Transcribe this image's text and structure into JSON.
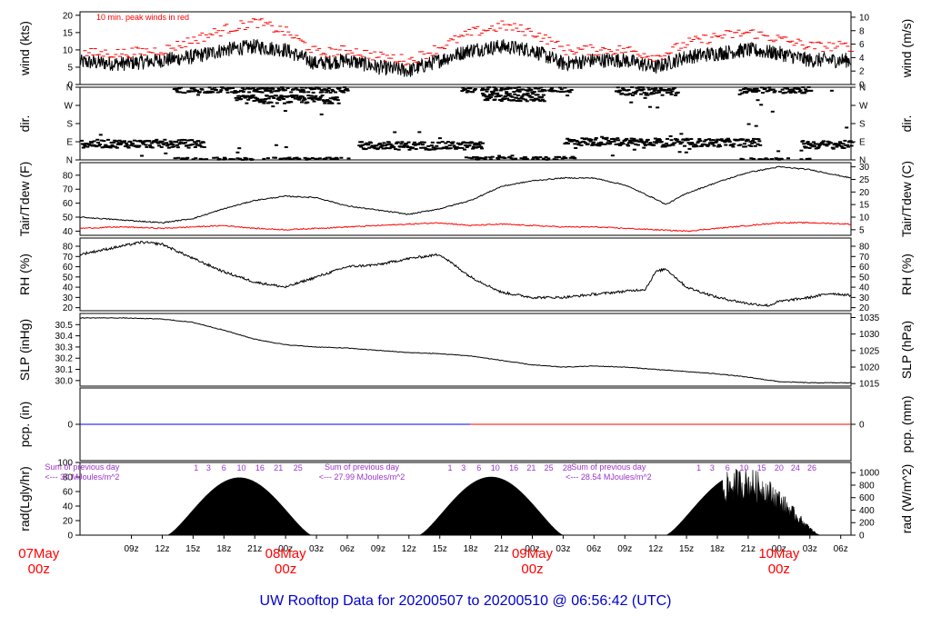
{
  "chart_data": {
    "type": "line",
    "title": "UW Rooftop Data for 20200507  to  20200510 @ 06:56:42  (UTC)",
    "x_axis": {
      "unit": "UTC hour",
      "range_hours": [
        4,
        79
      ],
      "tick_labels": [
        "09z",
        "12z",
        "15z",
        "18z",
        "21z",
        "00z",
        "03z",
        "06z",
        "09z",
        "12z",
        "15z",
        "18z",
        "21z",
        "00z",
        "03z",
        "06z",
        "09z",
        "12z",
        "15z",
        "18z",
        "21z",
        "00z",
        "03z",
        "06z"
      ],
      "tick_hours": [
        9,
        12,
        15,
        18,
        21,
        24,
        27,
        30,
        33,
        36,
        39,
        42,
        45,
        48,
        51,
        54,
        57,
        60,
        63,
        66,
        69,
        72,
        75,
        78
      ],
      "date_labels": [
        {
          "hour": 0,
          "day": "07May",
          "zone": "00z"
        },
        {
          "hour": 24,
          "day": "08May",
          "zone": "00z"
        },
        {
          "hour": 48,
          "day": "09May",
          "zone": "00z"
        },
        {
          "hour": 72,
          "day": "10May",
          "zone": "00z"
        }
      ]
    },
    "panels": [
      {
        "id": "wind",
        "ylabel_left": "wind (kts)",
        "ylabel_right": "wind (m/s)",
        "ylim": [
          0,
          21
        ],
        "left_ticks": [
          0,
          5,
          10,
          15,
          20
        ],
        "right_ticks_ms": [
          0,
          2,
          4,
          6,
          8,
          10
        ],
        "annotation": "10 min. peak winds in red",
        "series": [
          {
            "color": "#000000",
            "hours": [
              4,
              8,
              12,
              15,
              18,
              21,
              24,
              27,
              30,
              33,
              36,
              39,
              42,
              45,
              48,
              51,
              54,
              57,
              60,
              63,
              66,
              69,
              72,
              75,
              79
            ],
            "values": [
              6.5,
              6,
              7,
              8,
              10,
              11,
              10,
              6,
              7,
              5,
              4,
              7,
              10,
              11,
              10,
              6,
              7,
              7,
              5,
              8,
              9,
              10,
              9,
              7,
              7
            ]
          },
          {
            "color": "#ff0000",
            "hours": [
              4,
              8,
              12,
              15,
              18,
              21,
              24,
              27,
              30,
              33,
              36,
              39,
              42,
              45,
              48,
              51,
              54,
              57,
              60,
              63,
              66,
              69,
              72,
              75,
              79
            ],
            "values": [
              9,
              9,
              10,
              13,
              16,
              18,
              15,
              9,
              10,
              8,
              7,
              11,
              15,
              17,
              15,
              10,
              10,
              10,
              8,
              12,
              14,
              15,
              13,
              11,
              11
            ]
          }
        ]
      },
      {
        "id": "dir",
        "ylabel_left": "dir.",
        "ylabel_right": "dir.",
        "ylim": [
          0,
          360
        ],
        "tick_labels": [
          "N",
          "E",
          "S",
          "W",
          "N"
        ],
        "tick_values": [
          0,
          90,
          180,
          270,
          360
        ],
        "segments": [
          {
            "from": 4,
            "to": 16,
            "center": 80
          },
          {
            "from": 13,
            "to": 30,
            "center": 352
          },
          {
            "from": 19,
            "to": 29,
            "center": 300
          },
          {
            "from": 31,
            "to": 43,
            "center": 70
          },
          {
            "from": 41,
            "to": 52,
            "center": 355
          },
          {
            "from": 43,
            "to": 49,
            "center": 310
          },
          {
            "from": 51,
            "to": 60,
            "center": 90
          },
          {
            "from": 56,
            "to": 62,
            "center": 340
          },
          {
            "from": 60,
            "to": 70,
            "center": 85
          },
          {
            "from": 68,
            "to": 75,
            "center": 350
          },
          {
            "from": 74,
            "to": 79,
            "center": 75
          }
        ]
      },
      {
        "id": "temp",
        "ylabel_left": "Tair/Tdew (F)",
        "ylabel_right": "Tair/Tdew (C)",
        "ylim": [
          37,
          89
        ],
        "left_ticks": [
          40,
          50,
          60,
          70,
          80
        ],
        "right_ticks_c": [
          5,
          10,
          15,
          20,
          25,
          30
        ],
        "series": [
          {
            "name": "Tair",
            "color": "#000000",
            "hours": [
              4,
              8,
              12,
              15,
              18,
              21,
              24,
              27,
              30,
              33,
              36,
              39,
              42,
              45,
              48,
              51,
              54,
              57,
              60,
              61,
              63,
              66,
              69,
              72,
              75,
              79
            ],
            "values": [
              50,
              48,
              46,
              49,
              56,
              62,
              65,
              64,
              58,
              55,
              52,
              56,
              62,
              72,
              76,
              78,
              78,
              73,
              63,
              59,
              67,
              75,
              82,
              86,
              84,
              78
            ]
          },
          {
            "name": "Tdew",
            "color": "#ff0000",
            "hours": [
              4,
              8,
              12,
              15,
              18,
              21,
              24,
              27,
              30,
              33,
              36,
              39,
              42,
              45,
              48,
              51,
              54,
              57,
              60,
              63,
              66,
              69,
              72,
              75,
              79
            ],
            "values": [
              42,
              43,
              42,
              43,
              44,
              42,
              41,
              42,
              43,
              44,
              45,
              46,
              44,
              45,
              44,
              43,
              43,
              42,
              41,
              40,
              42,
              44,
              46,
              46,
              45
            ]
          }
        ]
      },
      {
        "id": "rh",
        "ylabel_left": "RH (%)",
        "ylabel_right": "RH (%)",
        "ylim": [
          17,
          88
        ],
        "ticks": [
          20,
          30,
          40,
          50,
          60,
          70,
          80
        ],
        "series": [
          {
            "color": "#000000",
            "hours": [
              4,
              8,
              10,
              12,
              15,
              18,
              21,
              24,
              27,
              30,
              33,
              36,
              39,
              42,
              45,
              48,
              51,
              54,
              57,
              59,
              60,
              61,
              63,
              66,
              69,
              71,
              72,
              75,
              77,
              79
            ],
            "values": [
              72,
              80,
              84,
              82,
              68,
              55,
              45,
              40,
              50,
              60,
              62,
              68,
              72,
              50,
              35,
              30,
              30,
              33,
              36,
              38,
              55,
              58,
              40,
              30,
              24,
              22,
              26,
              30,
              34,
              32
            ]
          }
        ]
      },
      {
        "id": "slp",
        "ylabel_left": "SLP (inHg)",
        "ylabel_right": "SLP (hPa)",
        "ylim_inhg": [
          29.95,
          30.6
        ],
        "left_ticks": [
          30.0,
          30.1,
          30.2,
          30.3,
          30.4,
          30.5
        ],
        "right_ticks_hpa": [
          1015,
          1020,
          1025,
          1030,
          1035
        ],
        "series": [
          {
            "color": "#000000",
            "hours": [
              4,
              8,
              12,
              15,
              18,
              21,
              24,
              27,
              30,
              33,
              36,
              39,
              42,
              45,
              48,
              51,
              54,
              57,
              60,
              63,
              66,
              69,
              72,
              75,
              79
            ],
            "values": [
              30.56,
              30.56,
              30.55,
              30.52,
              30.45,
              30.37,
              30.32,
              30.3,
              30.29,
              30.27,
              30.25,
              30.24,
              30.22,
              30.18,
              30.14,
              30.12,
              30.13,
              30.12,
              30.1,
              30.08,
              30.06,
              30.03,
              29.99,
              29.98,
              29.98
            ]
          }
        ]
      },
      {
        "id": "pcp",
        "ylabel_left": "pcp. (in)",
        "ylabel_right": "pcp. (mm)",
        "left_ticks": [
          0
        ],
        "right_ticks": [
          0
        ],
        "series": [
          {
            "color": "#0000ff",
            "hours": [
              4,
              42
            ],
            "values": [
              0,
              0
            ]
          },
          {
            "color": "#ff0000",
            "hours": [
              42,
              79
            ],
            "values": [
              0,
              0
            ]
          }
        ]
      },
      {
        "id": "rad",
        "ylabel_left": "rad(Lgly/hr)",
        "ylabel_right": "rad (W/m^2)",
        "ylim_lgly": [
          0,
          100
        ],
        "left_ticks": [
          0,
          20,
          40,
          60,
          80,
          100
        ],
        "right_ticks_wm2": [
          0,
          200,
          400,
          600,
          800,
          1000
        ],
        "days": [
          {
            "sunrise": 12.5,
            "noon": 19.5,
            "sunset": 26.5,
            "peak_lgly": 79
          },
          {
            "sunrise": 37,
            "noon": 44,
            "sunset": 51,
            "peak_lgly": 80
          },
          {
            "sunrise": 61,
            "noon": 68.5,
            "sunset": 76,
            "peak_lgly": 85
          }
        ],
        "annotations": [
          {
            "line1": "Sum of previous day",
            "line2": "<--- 30 MJoules/m^2",
            "anchor_hour": 2
          },
          {
            "line1": "Sum of previous day",
            "line2": "<--- 27.99 MJoules/m^2",
            "anchor_hour": 27
          },
          {
            "line1": "Sum of previous day",
            "line2": "<--- 28.54 MJoules/m^2",
            "anchor_hour": 51
          }
        ],
        "cumulative_labels": [
          {
            "hour": 15.3,
            "text": "1"
          },
          {
            "hour": 16.5,
            "text": "3"
          },
          {
            "hour": 18,
            "text": "6"
          },
          {
            "hour": 19.7,
            "text": "10"
          },
          {
            "hour": 21.5,
            "text": "16"
          },
          {
            "hour": 23.3,
            "text": "21"
          },
          {
            "hour": 25.2,
            "text": "25"
          },
          {
            "hour": 40,
            "text": "1"
          },
          {
            "hour": 41.3,
            "text": "3"
          },
          {
            "hour": 42.8,
            "text": "6"
          },
          {
            "hour": 44.4,
            "text": "10"
          },
          {
            "hour": 46.2,
            "text": "16"
          },
          {
            "hour": 47.9,
            "text": "21"
          },
          {
            "hour": 49.6,
            "text": "25"
          },
          {
            "hour": 51.4,
            "text": "28"
          },
          {
            "hour": 64.2,
            "text": "1"
          },
          {
            "hour": 65.5,
            "text": "3"
          },
          {
            "hour": 67,
            "text": "6"
          },
          {
            "hour": 68.6,
            "text": "10"
          },
          {
            "hour": 70.3,
            "text": "15"
          },
          {
            "hour": 72,
            "text": "20"
          },
          {
            "hour": 73.6,
            "text": "24"
          },
          {
            "hour": 75.2,
            "text": "26"
          }
        ]
      }
    ]
  }
}
